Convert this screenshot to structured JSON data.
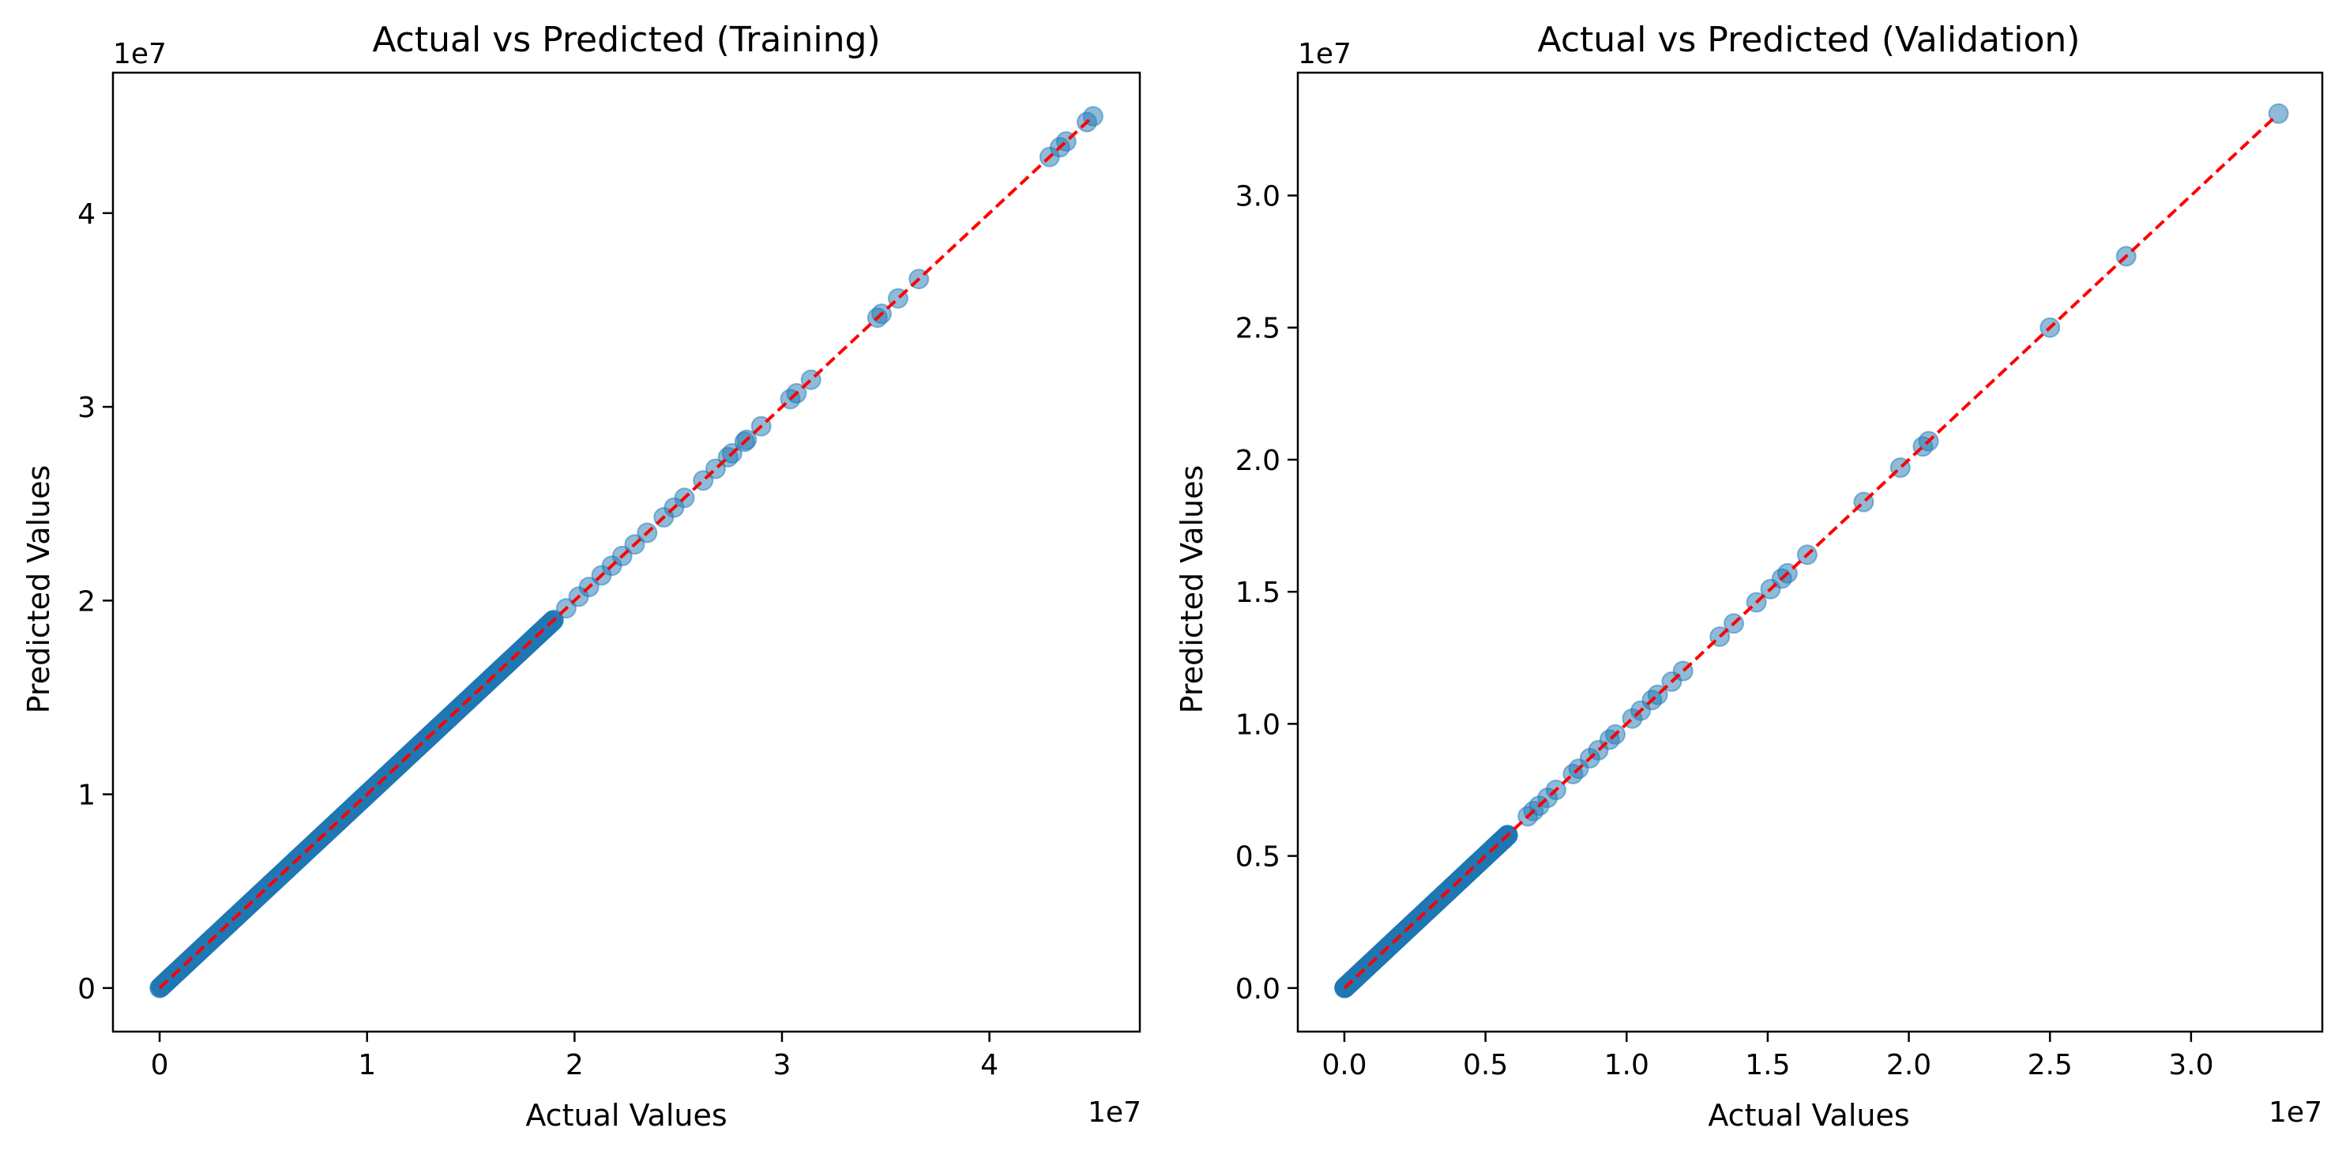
{
  "chart_data": [
    {
      "type": "scatter",
      "title": "Actual vs Predicted (Training)",
      "xlabel": "Actual Values",
      "ylabel": "Predicted Values",
      "x_offset_label": "1e7",
      "y_offset_label": "1e7",
      "xlim": [
        -2250000,
        47250000
      ],
      "ylim": [
        -2250000,
        47250000
      ],
      "xticks": [
        0,
        10000000,
        20000000,
        30000000,
        40000000
      ],
      "yticks": [
        0,
        10000000,
        20000000,
        30000000,
        40000000
      ],
      "xtick_labels": [
        "0",
        "1",
        "2",
        "3",
        "4"
      ],
      "ytick_labels": [
        "0",
        "1",
        "2",
        "3",
        "4"
      ],
      "grid": false,
      "marker_color": "#1f77b4",
      "reference_line": {
        "from": [
          0,
          0
        ],
        "to": [
          45000000,
          45000000
        ],
        "color": "#ff0000",
        "style": "dashed"
      },
      "series": [
        {
          "dense_range": [
            0,
            19000000
          ],
          "points": [
            [
              19600000,
              19600000
            ],
            [
              20200000,
              20200000
            ],
            [
              20700000,
              20700000
            ],
            [
              21300000,
              21300000
            ],
            [
              21800000,
              21800000
            ],
            [
              22300000,
              22300000
            ],
            [
              22900000,
              22900000
            ],
            [
              23500000,
              23500000
            ],
            [
              24300000,
              24300000
            ],
            [
              24800000,
              24800000
            ],
            [
              25300000,
              25300000
            ],
            [
              26200000,
              26200000
            ],
            [
              26800000,
              26800000
            ],
            [
              27400000,
              27400000
            ],
            [
              27600000,
              27600000
            ],
            [
              28200000,
              28200000
            ],
            [
              28300000,
              28300000
            ],
            [
              29000000,
              29000000
            ],
            [
              30400000,
              30400000
            ],
            [
              30700000,
              30700000
            ],
            [
              31400000,
              31400000
            ],
            [
              34600000,
              34600000
            ],
            [
              34800000,
              34800000
            ],
            [
              35600000,
              35600000
            ],
            [
              36600000,
              36600000
            ],
            [
              42900000,
              42900000
            ],
            [
              43400000,
              43400000
            ],
            [
              43700000,
              43700000
            ],
            [
              44700000,
              44700000
            ],
            [
              45000000,
              45000000
            ]
          ]
        }
      ]
    },
    {
      "type": "scatter",
      "title": "Actual vs Predicted (Validation)",
      "xlabel": "Actual Values",
      "ylabel": "Predicted Values",
      "x_offset_label": "1e7",
      "y_offset_label": "1e7",
      "xlim": [
        -1650000,
        34650000
      ],
      "ylim": [
        -1650000,
        34650000
      ],
      "xticks": [
        0,
        5000000,
        10000000,
        15000000,
        20000000,
        25000000,
        30000000
      ],
      "yticks": [
        0,
        5000000,
        10000000,
        15000000,
        20000000,
        25000000,
        30000000
      ],
      "xtick_labels": [
        "0.0",
        "0.5",
        "1.0",
        "1.5",
        "2.0",
        "2.5",
        "3.0"
      ],
      "ytick_labels": [
        "0.0",
        "0.5",
        "1.0",
        "1.5",
        "2.0",
        "2.5",
        "3.0"
      ],
      "grid": false,
      "marker_color": "#1f77b4",
      "reference_line": {
        "from": [
          0,
          0
        ],
        "to": [
          33000000,
          33000000
        ],
        "color": "#ff0000",
        "style": "dashed"
      },
      "series": [
        {
          "dense_range": [
            0,
            5800000
          ],
          "points": [
            [
              6500000,
              6500000
            ],
            [
              6700000,
              6700000
            ],
            [
              6900000,
              6900000
            ],
            [
              7200000,
              7200000
            ],
            [
              7500000,
              7500000
            ],
            [
              8100000,
              8100000
            ],
            [
              8300000,
              8300000
            ],
            [
              8700000,
              8700000
            ],
            [
              9000000,
              9000000
            ],
            [
              9400000,
              9400000
            ],
            [
              9600000,
              9600000
            ],
            [
              10200000,
              10200000
            ],
            [
              10500000,
              10500000
            ],
            [
              10900000,
              10900000
            ],
            [
              11100000,
              11100000
            ],
            [
              11600000,
              11600000
            ],
            [
              12000000,
              12000000
            ],
            [
              13300000,
              13300000
            ],
            [
              13800000,
              13800000
            ],
            [
              14600000,
              14600000
            ],
            [
              15100000,
              15100000
            ],
            [
              15500000,
              15500000
            ],
            [
              15700000,
              15700000
            ],
            [
              16400000,
              16400000
            ],
            [
              18400000,
              18400000
            ],
            [
              19700000,
              19700000
            ],
            [
              20500000,
              20500000
            ],
            [
              20700000,
              20700000
            ],
            [
              25000000,
              25000000
            ],
            [
              27700000,
              27700000
            ],
            [
              33100000,
              33100000
            ]
          ]
        }
      ]
    }
  ]
}
